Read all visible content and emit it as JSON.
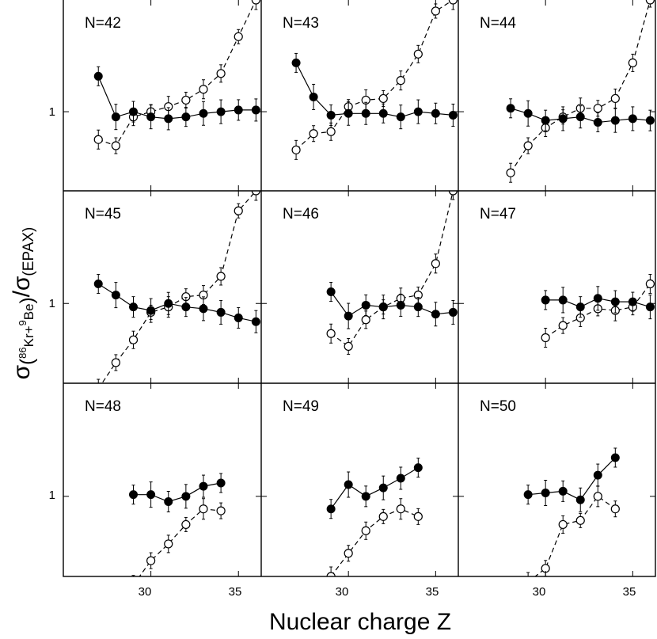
{
  "xlabel": "Nuclear charge Z",
  "ylabel": {
    "main": "σ",
    "num_open": "(",
    "num_iso1": "86",
    "num_el1": "Kr+",
    "num_iso2": "9",
    "num_el2": "Be",
    "num_close": ")",
    "slash": "/σ",
    "den": "(EPAX)"
  },
  "x_ticks": [
    "30",
    "35"
  ],
  "y_tick": "1",
  "chart_data": {
    "type": "scatter",
    "xlim": [
      25,
      36.3
    ],
    "ylim": [
      0.63,
      1.92
    ],
    "y_scale": "log",
    "grid": false,
    "layout": "3x3 shared axes",
    "series_styles": {
      "filled": {
        "marker": "filled-circle",
        "line": "solid",
        "color": "#000000"
      },
      "open": {
        "marker": "open-circle",
        "line": "dashed",
        "color": "#000000"
      }
    },
    "panels": [
      {
        "label": "N=42",
        "filled": {
          "x": [
            27,
            28,
            29,
            30,
            31,
            32,
            33,
            34,
            35,
            36
          ],
          "y": [
            1.23,
            0.97,
            1.0,
            0.97,
            0.96,
            0.97,
            0.99,
            1.0,
            1.01,
            1.01
          ]
        },
        "open": {
          "x": [
            27,
            28,
            29,
            30,
            31,
            32,
            33,
            34,
            35,
            36
          ],
          "y": [
            0.85,
            0.82,
            0.97,
            1.0,
            1.03,
            1.07,
            1.14,
            1.25,
            1.55,
            1.92
          ]
        }
      },
      {
        "label": "N=43",
        "filled": {
          "x": [
            27,
            28,
            29,
            30,
            31,
            32,
            33,
            34,
            35,
            36
          ],
          "y": [
            1.33,
            1.09,
            0.98,
            0.99,
            0.99,
            0.99,
            0.97,
            1.0,
            0.99,
            0.98
          ]
        },
        "open": {
          "x": [
            27,
            28,
            29,
            30,
            31,
            32,
            33,
            34,
            35,
            36
          ],
          "y": [
            0.8,
            0.88,
            0.89,
            1.03,
            1.07,
            1.08,
            1.2,
            1.4,
            1.8,
            1.92
          ]
        }
      },
      {
        "label": "N=44",
        "filled": {
          "x": [
            28,
            29,
            30,
            31,
            32,
            33,
            34,
            35,
            36
          ],
          "y": [
            1.02,
            0.99,
            0.95,
            0.96,
            0.97,
            0.94,
            0.95,
            0.96,
            0.95
          ]
        },
        "open": {
          "x": [
            28,
            29,
            30,
            31,
            32,
            33,
            34,
            35,
            36
          ],
          "y": [
            0.7,
            0.82,
            0.91,
            0.97,
            1.02,
            1.02,
            1.08,
            1.33,
            1.92
          ]
        }
      },
      {
        "label": "N=45",
        "filled": {
          "x": [
            27,
            28,
            29,
            30,
            31,
            32,
            33,
            34,
            35,
            36
          ],
          "y": [
            1.12,
            1.05,
            0.98,
            0.96,
            1.0,
            0.98,
            0.97,
            0.95,
            0.92,
            0.9
          ]
        },
        "open": {
          "x": [
            27,
            28,
            29,
            30,
            31,
            32,
            33,
            34,
            35,
            36
          ],
          "y": [
            0.61,
            0.71,
            0.81,
            0.95,
            0.98,
            1.04,
            1.05,
            1.17,
            1.71,
            1.92
          ]
        }
      },
      {
        "label": "N=46",
        "filled": {
          "x": [
            29,
            30,
            31,
            32,
            33,
            34,
            35,
            36
          ],
          "y": [
            1.07,
            0.93,
            0.99,
            0.98,
            0.99,
            0.98,
            0.94,
            0.95
          ]
        },
        "open": {
          "x": [
            29,
            30,
            31,
            32,
            33,
            34,
            35,
            36
          ],
          "y": [
            0.84,
            0.78,
            0.91,
            0.98,
            1.03,
            1.05,
            1.26,
            1.92
          ]
        }
      },
      {
        "label": "N=47",
        "filled": {
          "x": [
            30,
            31,
            32,
            33,
            34,
            35,
            36
          ],
          "y": [
            1.02,
            1.02,
            0.98,
            1.03,
            1.01,
            1.01,
            0.98
          ]
        },
        "open": {
          "x": [
            30,
            31,
            32,
            33,
            34,
            35,
            36
          ],
          "y": [
            0.82,
            0.88,
            0.92,
            0.97,
            0.96,
            0.98,
            1.12
          ]
        }
      },
      {
        "label": "N=48",
        "filled": {
          "x": [
            29,
            30,
            31,
            32,
            33,
            34
          ],
          "y": [
            1.01,
            1.01,
            0.97,
            1.0,
            1.06,
            1.08
          ]
        },
        "open": {
          "x": [
            29,
            30,
            31,
            32,
            33,
            34
          ],
          "y": [
            0.6,
            0.69,
            0.76,
            0.85,
            0.93,
            0.92
          ]
        }
      },
      {
        "label": "N=49",
        "filled": {
          "x": [
            29,
            30,
            31,
            32,
            33,
            34
          ],
          "y": [
            0.93,
            1.07,
            1.0,
            1.05,
            1.11,
            1.18
          ]
        },
        "open": {
          "x": [
            29,
            30,
            31,
            32,
            33,
            34
          ],
          "y": [
            0.63,
            0.72,
            0.82,
            0.89,
            0.93,
            0.89
          ]
        }
      },
      {
        "label": "N=50",
        "filled": {
          "x": [
            29,
            30,
            31,
            32,
            33,
            34
          ],
          "y": [
            1.01,
            1.02,
            1.03,
            0.98,
            1.13,
            1.25
          ]
        },
        "open": {
          "x": [
            29,
            30,
            31,
            32,
            33,
            34
          ],
          "y": [
            0.61,
            0.66,
            0.85,
            0.87,
            1.0,
            0.93
          ]
        }
      }
    ]
  }
}
